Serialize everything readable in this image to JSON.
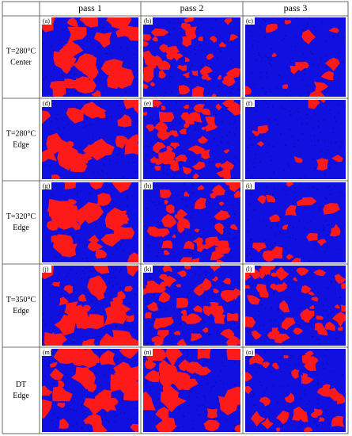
{
  "header": {
    "columns": [
      "pass 1",
      "pass 2",
      "pass 3"
    ]
  },
  "rows": [
    {
      "label": [
        "T=280°C",
        "Center"
      ],
      "panels": [
        "(a)",
        "(b)",
        "(c)"
      ]
    },
    {
      "label": [
        "T=280°C",
        "Edge"
      ],
      "panels": [
        "(d)",
        "(e)",
        "(f)"
      ]
    },
    {
      "label": [
        "T=320°C",
        "Edge"
      ],
      "panels": [
        "(g)",
        "(h)",
        "(i)"
      ]
    },
    {
      "label": [
        "T=350°C",
        "Edge"
      ],
      "panels": [
        "(j)",
        "(k)",
        "(l)"
      ]
    },
    {
      "label": [
        "DT",
        "Edge"
      ],
      "panels": [
        "(m)",
        "(n)",
        "(o)"
      ]
    }
  ]
}
